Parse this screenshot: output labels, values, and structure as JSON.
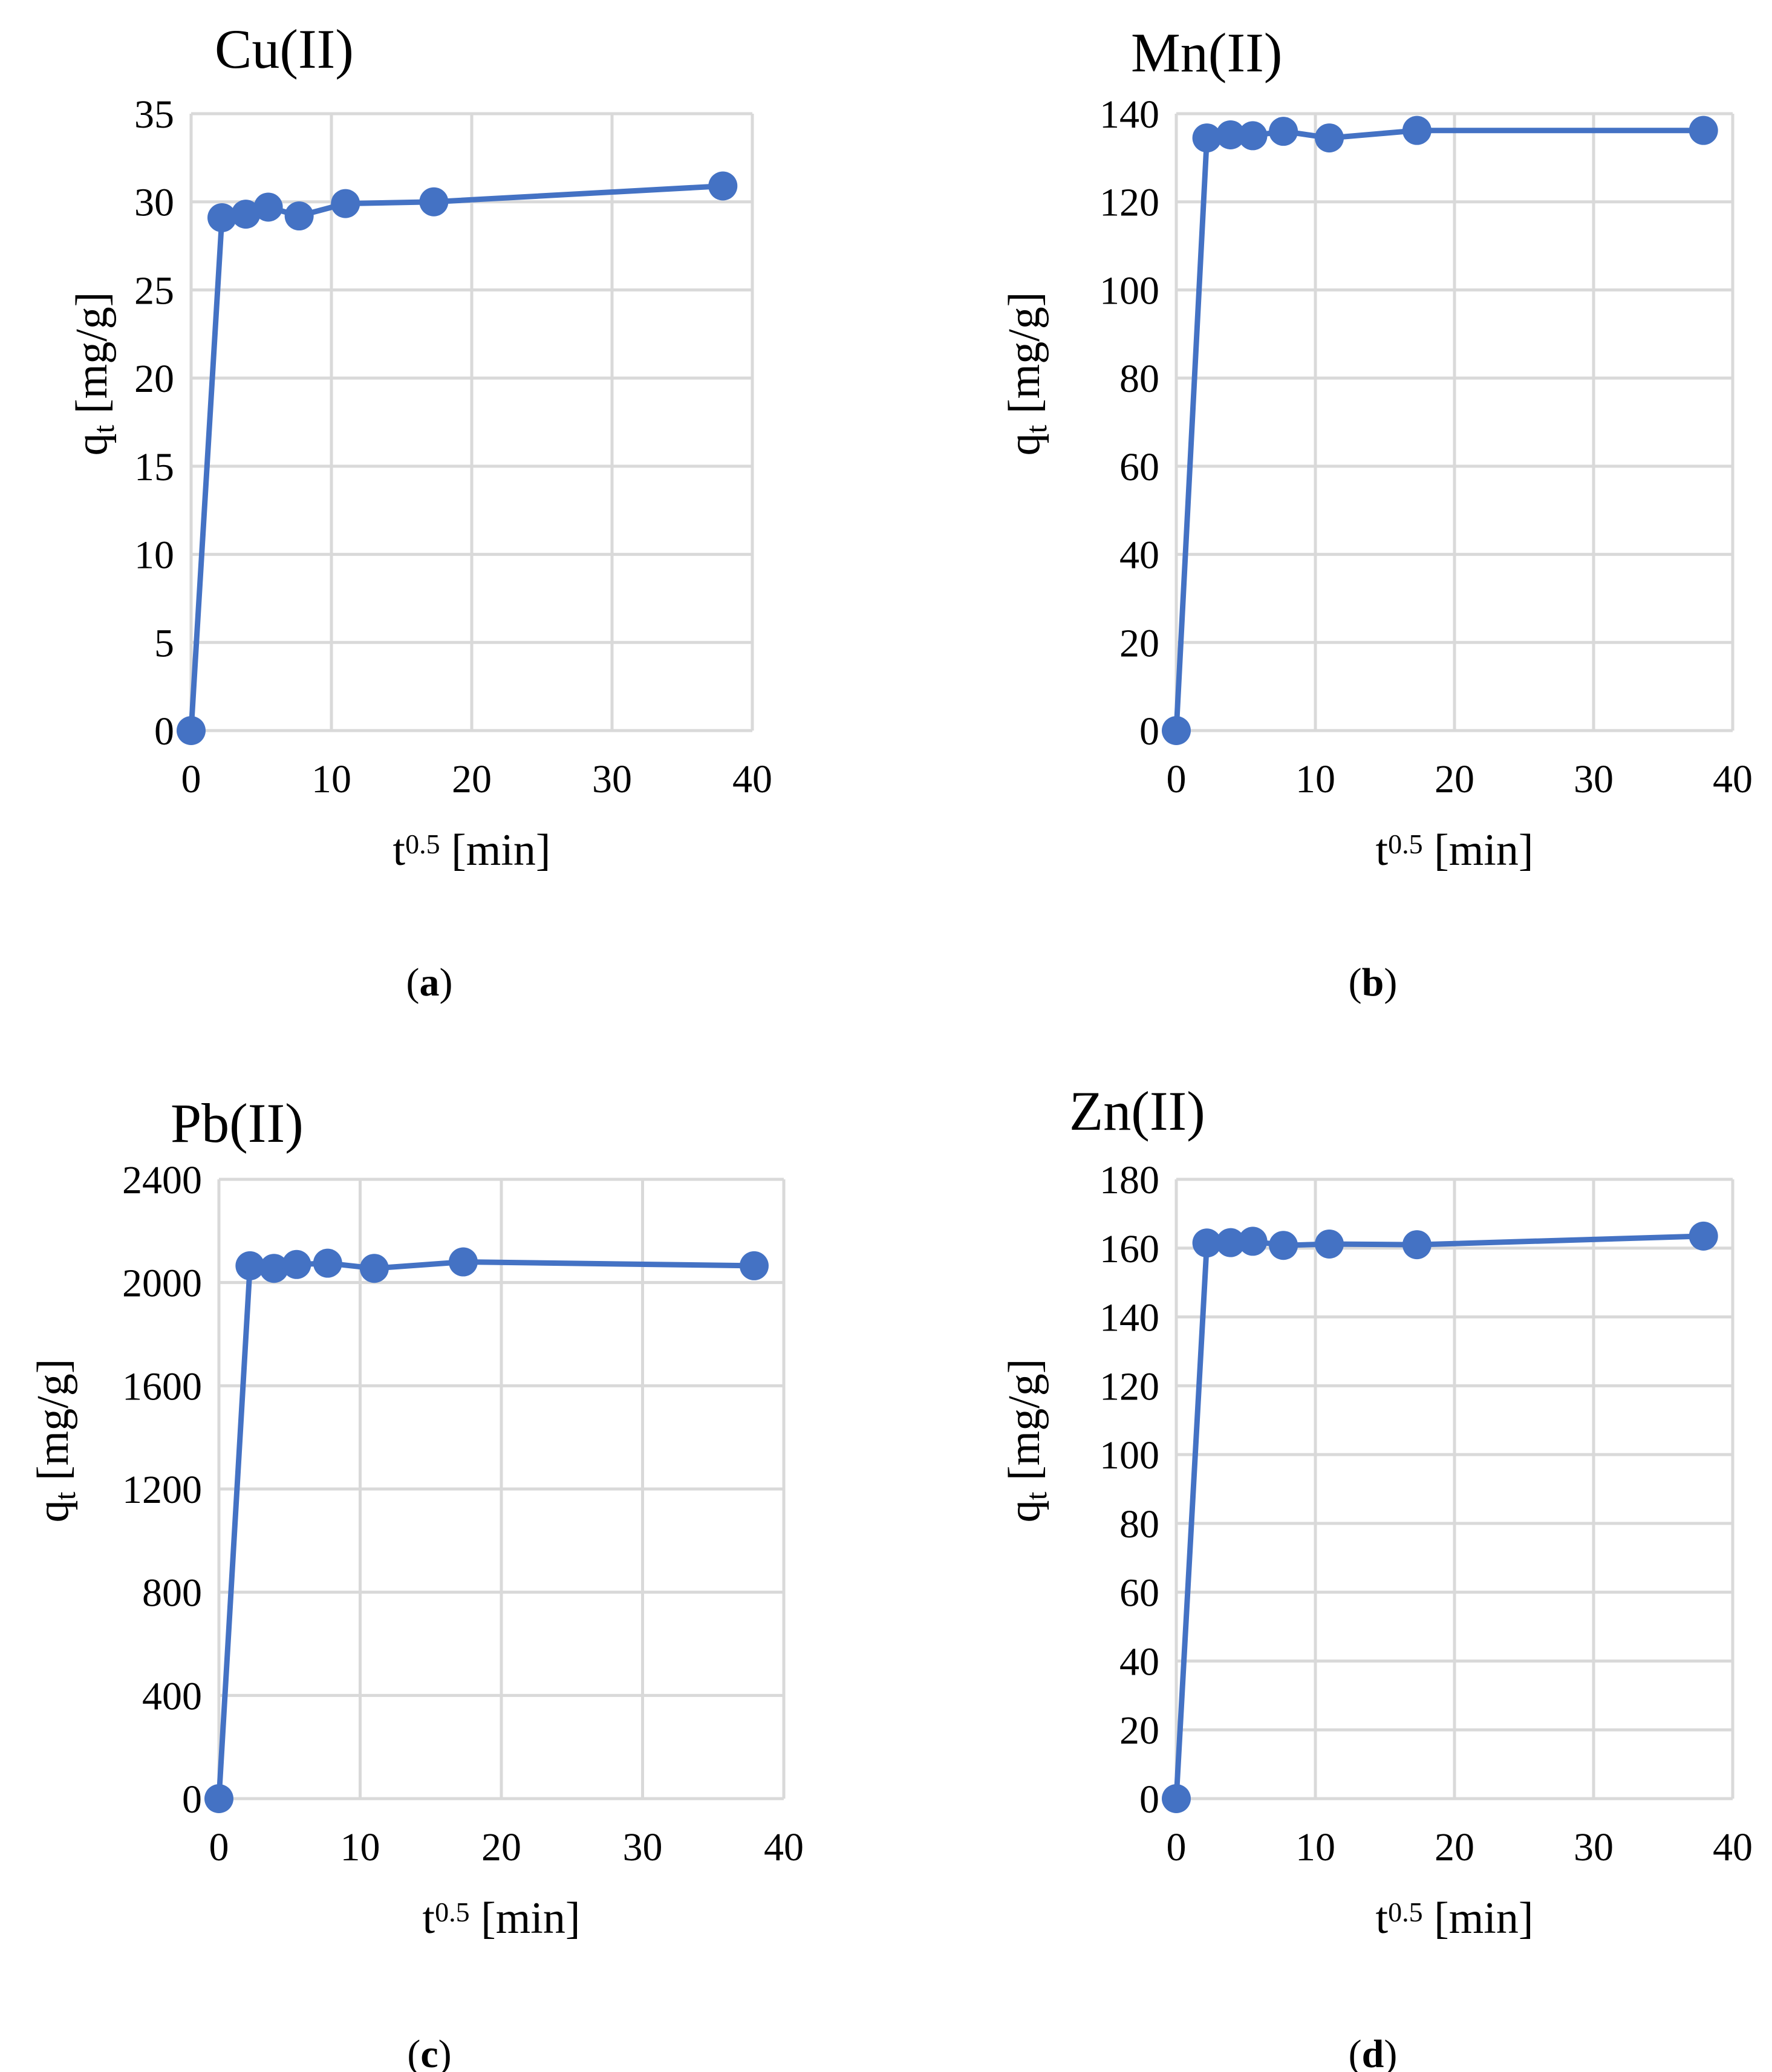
{
  "colors": {
    "series": "#4472C4",
    "grid": "#d9d9d9",
    "text": "#000000"
  },
  "chart_data": [
    {
      "type": "line",
      "title": "Cu(II)",
      "panel_label": "a",
      "xlabel_base": "t",
      "xlabel_sup": "0.5",
      "xlabel_unit": " [min]",
      "ylabel_base": "q",
      "ylabel_sub": "t",
      "ylabel_unit": " [mg/g]",
      "xlim": [
        0,
        40
      ],
      "ylim": [
        0,
        35
      ],
      "xticks": [
        0,
        10,
        20,
        30,
        40
      ],
      "yticks": [
        0,
        5,
        10,
        15,
        20,
        25,
        30,
        35
      ],
      "grid": true,
      "series": [
        {
          "name": "Cu(II)",
          "x": [
            0,
            2.2,
            3.9,
            5.5,
            7.7,
            11,
            17.3,
            37.9
          ],
          "y": [
            0,
            29.1,
            29.3,
            29.7,
            29.2,
            29.9,
            30.0,
            30.9
          ]
        }
      ]
    },
    {
      "type": "line",
      "title": "Mn(II)",
      "panel_label": "b",
      "xlabel_base": "t",
      "xlabel_sup": "0.5",
      "xlabel_unit": " [min]",
      "ylabel_base": "q",
      "ylabel_sub": "t",
      "ylabel_unit": " [mg/g]",
      "xlim": [
        0,
        40
      ],
      "ylim": [
        0,
        140
      ],
      "xticks": [
        0,
        10,
        20,
        30,
        40
      ],
      "yticks": [
        0,
        20,
        40,
        60,
        80,
        100,
        120,
        140
      ],
      "grid": true,
      "series": [
        {
          "name": "Mn(II)",
          "x": [
            0,
            2.2,
            3.9,
            5.5,
            7.7,
            11,
            17.3,
            37.9
          ],
          "y": [
            0,
            134.5,
            135.2,
            135.0,
            136.0,
            134.5,
            136.2,
            136.2
          ]
        }
      ]
    },
    {
      "type": "line",
      "title": "Pb(II)",
      "panel_label": "c",
      "xlabel_base": "t",
      "xlabel_sup": "0.5",
      "xlabel_unit": " [min]",
      "ylabel_base": "q",
      "ylabel_sub": "t",
      "ylabel_unit": " [mg/g]",
      "xlim": [
        0,
        40
      ],
      "ylim": [
        0,
        2400
      ],
      "xticks": [
        0,
        10,
        20,
        30,
        40
      ],
      "yticks": [
        0,
        400,
        800,
        1200,
        1600,
        2000,
        2400
      ],
      "grid": true,
      "series": [
        {
          "name": "Pb(II)",
          "x": [
            0,
            2.2,
            3.9,
            5.5,
            7.7,
            11,
            17.3,
            37.9
          ],
          "y": [
            0,
            2065,
            2055,
            2070,
            2075,
            2055,
            2080,
            2065
          ]
        }
      ]
    },
    {
      "type": "line",
      "title": "Zn(II)",
      "panel_label": "d",
      "xlabel_base": "t",
      "xlabel_sup": "0.5",
      "xlabel_unit": " [min]",
      "ylabel_base": "q",
      "ylabel_sub": "t",
      "ylabel_unit": " [mg/g]",
      "xlim": [
        0,
        40
      ],
      "ylim": [
        0,
        180
      ],
      "xticks": [
        0,
        10,
        20,
        30,
        40
      ],
      "yticks": [
        0,
        20,
        40,
        60,
        80,
        100,
        120,
        140,
        160,
        180
      ],
      "grid": true,
      "series": [
        {
          "name": "Zn(II)",
          "x": [
            0,
            2.2,
            3.9,
            5.5,
            7.7,
            11,
            17.3,
            37.9
          ],
          "y": [
            0,
            161.5,
            161.6,
            162.0,
            160.8,
            161.2,
            161.0,
            163.5
          ]
        }
      ]
    }
  ]
}
